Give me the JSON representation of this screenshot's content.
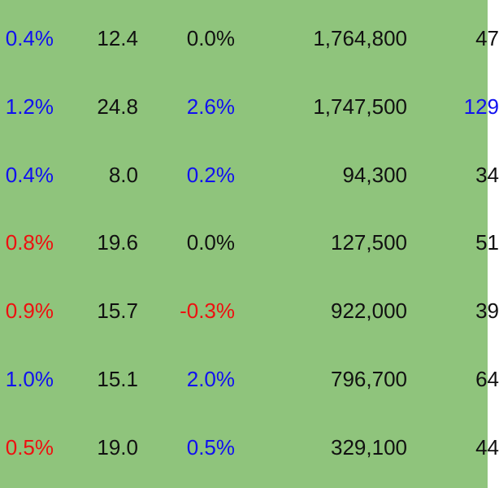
{
  "table": {
    "rows": [
      [
        "0.4%",
        "12.4",
        "0.0%",
        "1,764,800",
        "47"
      ],
      [
        "1.2%",
        "24.8",
        "2.6%",
        "1,747,500",
        "129"
      ],
      [
        "0.4%",
        "8.0",
        "0.2%",
        "94,300",
        "34"
      ],
      [
        "0.8%",
        "19.6",
        "0.0%",
        "127,500",
        "51"
      ],
      [
        "0.9%",
        "15.7",
        "-0.3%",
        "922,000",
        "39"
      ],
      [
        "1.0%",
        "15.1",
        "2.0%",
        "796,700",
        "64"
      ],
      [
        "0.5%",
        "19.0",
        "0.5%",
        "329,100",
        "44"
      ]
    ]
  }
}
